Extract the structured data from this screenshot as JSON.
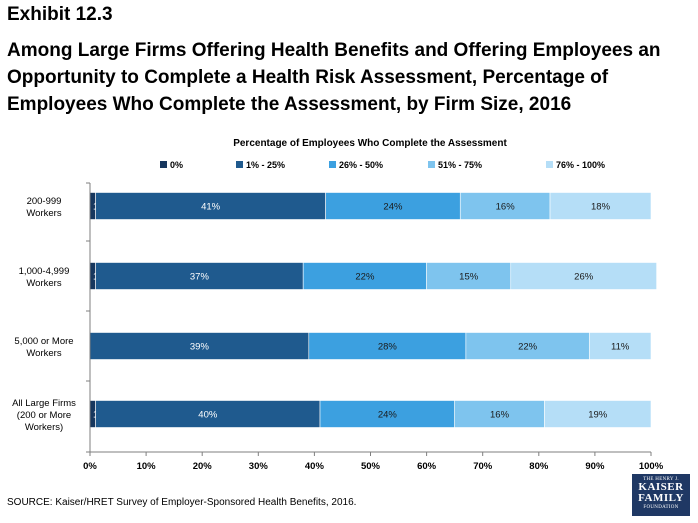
{
  "header": {
    "exhibit": "Exhibit 12.3",
    "title": "Among Large Firms Offering Health Benefits and Offering Employees an Opportunity to Complete a Health Risk Assessment, Percentage of Employees Who Complete the Assessment, by Firm Size, 2016"
  },
  "source": "SOURCE: Kaiser/HRET Survey of Employer-Sponsored Health Benefits, 2016.",
  "logo": {
    "line1": "THE HENRY J.",
    "line2": "KAISER",
    "line3": "FAMILY",
    "line4": "FOUNDATION"
  },
  "chart_data": {
    "type": "bar",
    "orientation": "horizontal",
    "stacked": true,
    "title": "Percentage of Employees Who Complete the Assessment",
    "legend_position": "top",
    "categories": [
      [
        "200-999",
        "Workers"
      ],
      [
        "1,000-4,999",
        "Workers"
      ],
      [
        "5,000 or More",
        "Workers"
      ],
      [
        "All Large Firms",
        "(200 or More",
        "Workers)"
      ]
    ],
    "series": [
      {
        "name": "0%",
        "color": "#17375e",
        "values": [
          1,
          1,
          0,
          1
        ],
        "labels": [
          "1%",
          "1%",
          "",
          "1%"
        ]
      },
      {
        "name": "1% - 25%",
        "color": "#1f5a8e",
        "values": [
          41,
          37,
          39,
          40
        ],
        "labels": [
          "41%",
          "37%",
          "39%",
          "40%"
        ]
      },
      {
        "name": "26% - 50%",
        "color": "#3ca0e0",
        "values": [
          24,
          22,
          28,
          24
        ],
        "labels": [
          "24%",
          "22%",
          "28%",
          "24%"
        ]
      },
      {
        "name": "51% - 75%",
        "color": "#7ec4ee",
        "values": [
          16,
          15,
          22,
          16
        ],
        "labels": [
          "16%",
          "15%",
          "22%",
          "16%"
        ]
      },
      {
        "name": "76% - 100%",
        "color": "#b5def7",
        "values": [
          18,
          26,
          11,
          19
        ],
        "labels": [
          "18%",
          "26%",
          "11%",
          "19%"
        ]
      }
    ],
    "x_ticks": [
      "0%",
      "10%",
      "20%",
      "30%",
      "40%",
      "50%",
      "60%",
      "70%",
      "80%",
      "90%",
      "100%"
    ],
    "xlim": [
      0,
      100
    ],
    "grid": false
  }
}
